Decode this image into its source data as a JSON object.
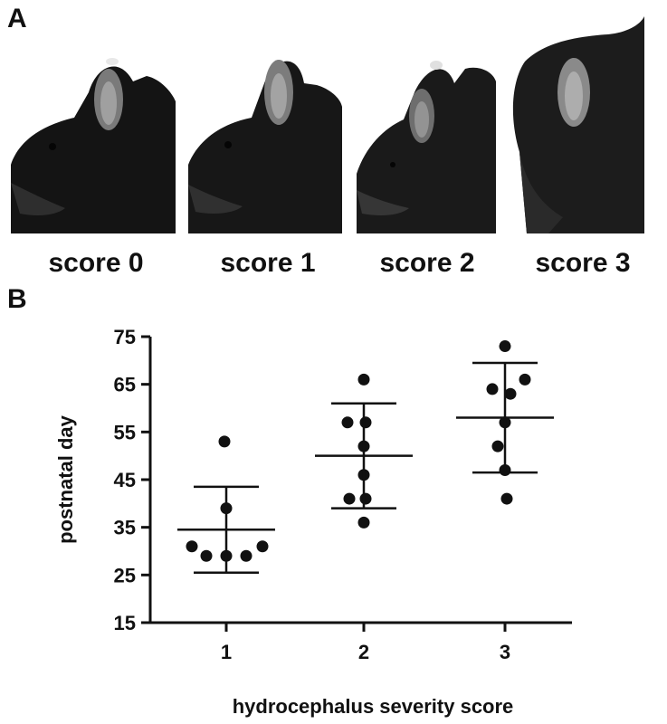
{
  "panel_a": {
    "letter": "A",
    "photos": [
      {
        "label": "score 0",
        "icon": "mouse-head-photo"
      },
      {
        "label": "score 1",
        "icon": "mouse-head-photo"
      },
      {
        "label": "score 2",
        "icon": "mouse-head-photo"
      },
      {
        "label": "score 3",
        "icon": "mouse-head-photo"
      }
    ]
  },
  "panel_b": {
    "letter": "B"
  },
  "chart_data": {
    "type": "scatter",
    "xlabel": "hydrocephalus severity score",
    "ylabel": "postnatal day",
    "categories": [
      "1",
      "2",
      "3"
    ],
    "ylim": [
      15,
      75
    ],
    "yticks": [
      15,
      25,
      35,
      45,
      55,
      65,
      75
    ],
    "grid": false,
    "points": [
      {
        "x": 1,
        "values": [
          53,
          39,
          31,
          31,
          29,
          29,
          29
        ]
      },
      {
        "x": 2,
        "values": [
          66,
          57,
          57,
          52,
          46,
          41,
          41,
          36
        ]
      },
      {
        "x": 3,
        "values": [
          73,
          66,
          64,
          63,
          57,
          52,
          47,
          41
        ]
      }
    ],
    "summary": [
      {
        "x": 1,
        "mean": 34.5,
        "upper": 43.5,
        "lower": 25.5
      },
      {
        "x": 2,
        "mean": 50,
        "upper": 61,
        "lower": 39
      },
      {
        "x": 3,
        "mean": 58,
        "upper": 69.5,
        "lower": 46.5
      }
    ]
  }
}
